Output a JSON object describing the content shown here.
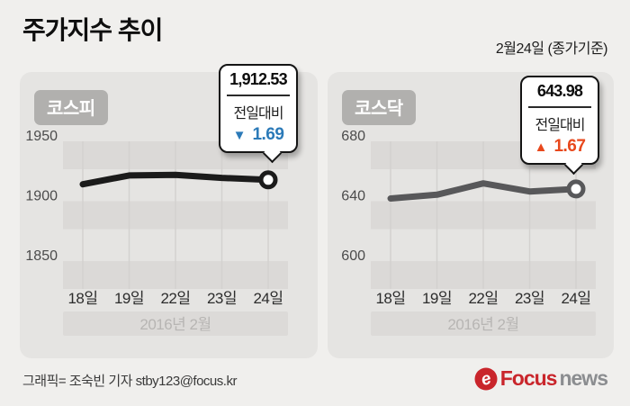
{
  "header": {
    "title": "주가지수 추이",
    "date_label": "2월24일 (종가기준)"
  },
  "palette": {
    "page_bg": "#f0efed",
    "panel_bg": "#e5e4e2",
    "stripe": "#dbd9d7",
    "grid": "#d3d1cf",
    "axis_strip": "#dcdad8",
    "axis_note_text": "#b7b5b3",
    "tick_text": "#4b4b4b",
    "x_label_text": "#2c2c2c",
    "badge_bg": "#b1b0ae"
  },
  "chart_data": [
    {
      "type": "line",
      "name": "코스피",
      "categories": [
        "18일",
        "19일",
        "22일",
        "23일",
        "24일"
      ],
      "values": [
        1908.84,
        1916.24,
        1916.79,
        1914.22,
        1912.53
      ],
      "yticks": [
        1950,
        1900,
        1850
      ],
      "ylim": [
        1845,
        1960
      ],
      "x_axis_note": "2016년 2월",
      "line_color": "#1b1b1b",
      "callout": {
        "value_label": "1,912.53",
        "change_label": "전일대비",
        "direction": "down",
        "change_symbol": "▼",
        "change_value": "1.69",
        "change_color": "#2b7ab8"
      }
    },
    {
      "type": "line",
      "name": "코스닥",
      "categories": [
        "18일",
        "19일",
        "22일",
        "23일",
        "24일"
      ],
      "values": [
        637.57,
        640.1,
        647.69,
        642.31,
        643.98
      ],
      "yticks": [
        680,
        640,
        600
      ],
      "ylim": [
        595,
        690
      ],
      "x_axis_note": "2016년 2월",
      "line_color": "#58585a",
      "callout": {
        "value_label": "643.98",
        "change_label": "전일대비",
        "direction": "up",
        "change_symbol": "▲",
        "change_value": "1.67",
        "change_color": "#e8481c"
      }
    }
  ],
  "footer": {
    "credit": "그래픽= 조숙빈 기자 stby123@focus.kr",
    "logo": {
      "brand": "Focus",
      "suffix": "news",
      "brand_color": "#c9252b",
      "suffix_color": "#8b8d90",
      "icon_letter": "e"
    }
  }
}
